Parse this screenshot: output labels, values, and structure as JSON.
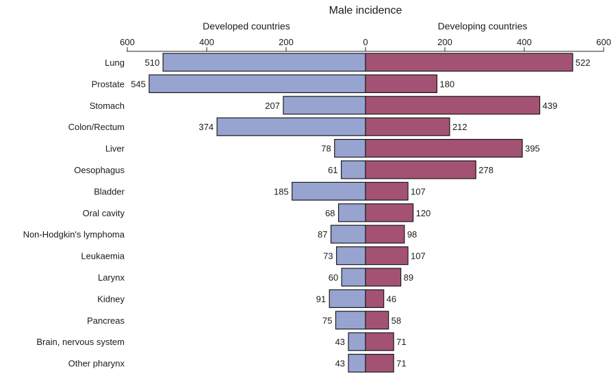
{
  "chart_data": {
    "type": "bar",
    "title": "Male incidence",
    "left_heading": "Developed countries",
    "right_heading": "Developing countries",
    "xlim": [
      -600,
      600
    ],
    "xticks": [
      600,
      400,
      200,
      0,
      200,
      400,
      600
    ],
    "categories": [
      "Lung",
      "Prostate",
      "Stomach",
      "Colon/Rectum",
      "Liver",
      "Oesophagus",
      "Bladder",
      "Oral cavity",
      "Non-Hodgkin's lymphoma",
      "Leukaemia",
      "Larynx",
      "Kidney",
      "Pancreas",
      "Brain, nervous system",
      "Other pharynx"
    ],
    "series": [
      {
        "name": "Developed countries",
        "color": "#97a4d0",
        "values": [
          510,
          545,
          207,
          374,
          78,
          61,
          185,
          68,
          87,
          73,
          60,
          91,
          75,
          43,
          43
        ]
      },
      {
        "name": "Developing countries",
        "color": "#a35274",
        "values": [
          522,
          180,
          439,
          212,
          395,
          278,
          107,
          120,
          98,
          107,
          89,
          46,
          58,
          71,
          71
        ]
      }
    ],
    "grid": false,
    "legend": "none"
  }
}
